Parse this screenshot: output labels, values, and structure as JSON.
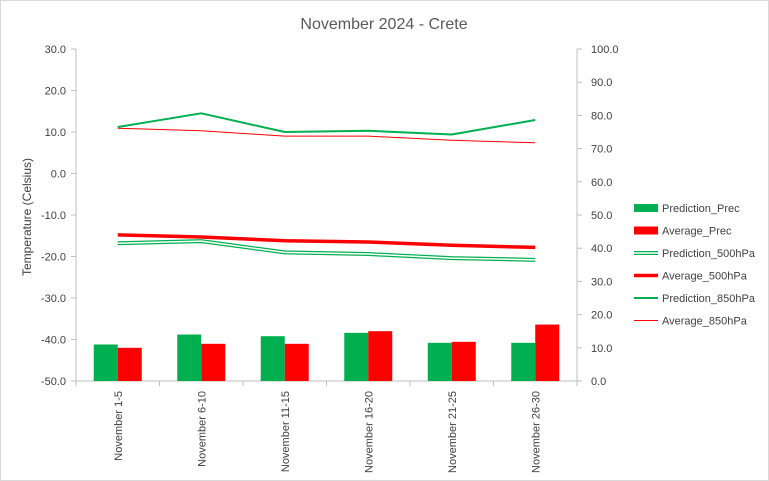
{
  "chart_data": {
    "type": "bar",
    "title": "November 2024 - Crete",
    "ylabel": "Temperature (Celsius)",
    "xlabel": "",
    "ylim": [
      -50,
      30
    ],
    "y2lim": [
      0,
      100
    ],
    "yticks": [
      "30.0",
      "20.0",
      "10.0",
      "0.0",
      "-10.0",
      "-20.0",
      "-30.0",
      "-40.0",
      "-50.0"
    ],
    "y2ticks": [
      "100.0",
      "90.0",
      "80.0",
      "70.0",
      "60.0",
      "50.0",
      "40.0",
      "30.0",
      "20.0",
      "10.0",
      "0.0"
    ],
    "categories": [
      "November 1-5",
      "November 6-10",
      "November 11-15",
      "November 16-20",
      "November 21-25",
      "November 26-30"
    ],
    "grid": false,
    "legend": "right",
    "series": [
      {
        "name": "Prediction_Prec",
        "kind": "bar",
        "axis": "right",
        "color": "#00b050",
        "values": [
          11,
          14,
          13.5,
          14.5,
          11.5,
          11.5
        ]
      },
      {
        "name": "Average_Prec",
        "kind": "bar",
        "axis": "right",
        "color": "#ff0000",
        "values": [
          10,
          11.2,
          11.2,
          15,
          11.8,
          17
        ]
      },
      {
        "name": "Prediction_500hPa",
        "kind": "line",
        "style": "double",
        "axis": "left",
        "color": "#00b050",
        "values": [
          -16.8,
          -16.3,
          -19,
          -19.4,
          -20.4,
          -20.8
        ]
      },
      {
        "name": "Average_500hPa",
        "kind": "line",
        "style": "thick",
        "axis": "left",
        "color": "#ff0000",
        "values": [
          -14.8,
          -15.3,
          -16.2,
          -16.5,
          -17.3,
          -17.8
        ]
      },
      {
        "name": "Prediction_850hPa",
        "kind": "line",
        "style": "medium",
        "axis": "left",
        "color": "#00b050",
        "values": [
          11.2,
          14.5,
          10,
          10.3,
          9.4,
          12.9
        ]
      },
      {
        "name": "Average_850hPa",
        "kind": "line",
        "style": "thin",
        "axis": "left",
        "color": "#ff0000",
        "values": [
          10.9,
          10.3,
          9,
          9,
          8,
          7.4
        ]
      }
    ]
  }
}
